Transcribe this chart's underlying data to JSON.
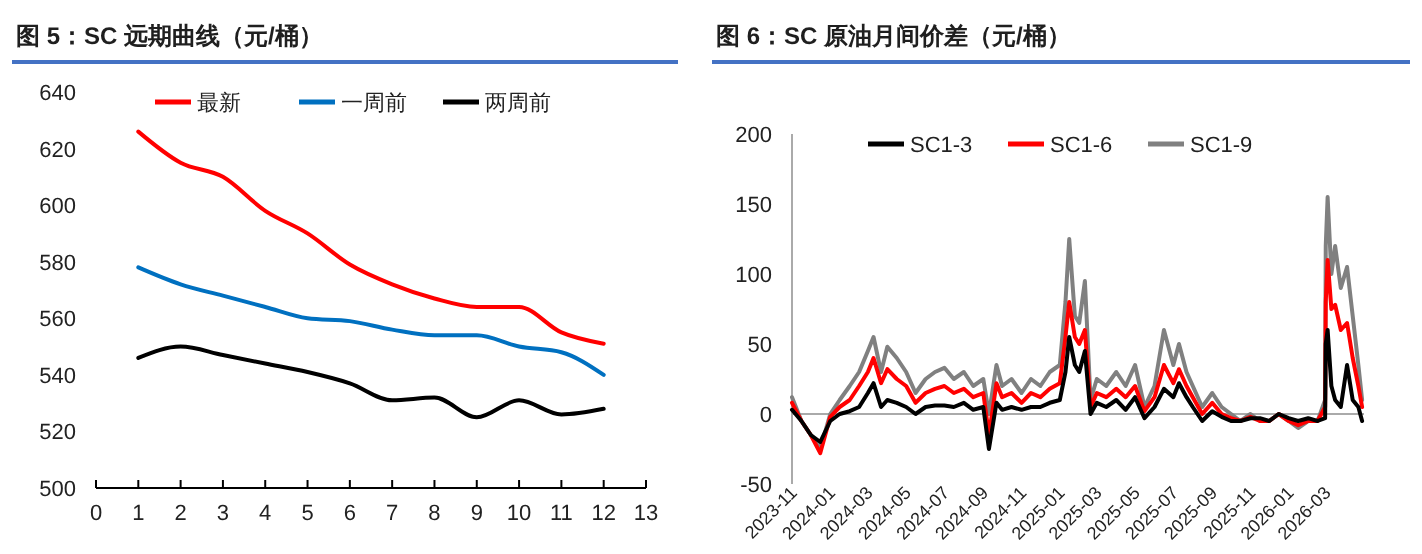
{
  "chart_data": [
    {
      "type": "line",
      "title": "图 5：SC 远期曲线（元/桶）",
      "x": [
        1,
        2,
        3,
        4,
        5,
        6,
        7,
        8,
        9,
        10,
        11,
        12
      ],
      "xlim": [
        0,
        13
      ],
      "xticks": [
        0,
        1,
        2,
        3,
        4,
        5,
        6,
        7,
        8,
        9,
        10,
        11,
        12,
        13
      ],
      "ylim": [
        500,
        640
      ],
      "yticks": [
        500,
        520,
        540,
        560,
        580,
        600,
        620,
        640
      ],
      "legend": "top",
      "series": [
        {
          "name": "最新",
          "color": "#ff0000",
          "values": [
            626,
            615,
            610,
            598,
            590,
            579,
            572,
            567,
            564,
            564,
            555,
            551
          ]
        },
        {
          "name": "一周前",
          "color": "#0070c0",
          "values": [
            578,
            572,
            568,
            564,
            560,
            559,
            556,
            554,
            554,
            550,
            548,
            540
          ]
        },
        {
          "name": "两周前",
          "color": "#000000",
          "values": [
            546,
            550,
            547,
            544,
            541,
            537,
            531,
            532,
            525,
            531,
            526,
            528
          ]
        }
      ]
    },
    {
      "type": "line",
      "title": "图 6：SC 原油月间价差（元/桶）",
      "x": [
        "2023-11-01",
        "2023-11-16",
        "2023-12-01",
        "2023-12-16",
        "2024-01-01",
        "2024-01-16",
        "2024-02-01",
        "2024-02-16",
        "2024-03-01",
        "2024-03-10",
        "2024-03-22",
        "2024-04-01",
        "2024-04-16",
        "2024-05-01",
        "2024-05-16",
        "2024-06-01",
        "2024-06-16",
        "2024-07-01",
        "2024-07-16",
        "2024-08-01",
        "2024-08-16",
        "2024-09-01",
        "2024-09-10",
        "2024-09-22",
        "2024-10-01",
        "2024-10-16",
        "2024-11-01",
        "2024-11-16",
        "2024-12-01",
        "2024-12-16",
        "2025-01-01",
        "2025-01-10",
        "2025-01-16",
        "2025-01-25",
        "2025-02-01",
        "2025-02-10",
        "2025-02-19",
        "2025-03-01",
        "2025-03-16",
        "2025-04-01",
        "2025-04-16",
        "2025-05-01",
        "2025-05-16",
        "2025-06-01",
        "2025-06-16",
        "2025-07-01",
        "2025-07-10",
        "2025-07-22",
        "2025-08-01",
        "2025-08-16",
        "2025-09-01",
        "2025-09-16",
        "2025-10-01",
        "2025-10-16",
        "2025-11-01",
        "2025-11-16",
        "2025-12-01",
        "2025-12-16",
        "2026-01-01",
        "2026-01-16",
        "2026-02-01",
        "2026-02-16",
        "2026-02-28",
        "2026-03-01",
        "2026-03-04",
        "2026-03-10",
        "2026-03-16",
        "2026-03-25",
        "2026-04-04",
        "2026-04-13",
        "2026-04-22",
        "2026-04-28"
      ],
      "xlim": [
        "2023-11-01",
        "2026-05-01"
      ],
      "xticks": [
        "2023-11",
        "2024-01",
        "2024-03",
        "2024-05",
        "2024-07",
        "2024-09",
        "2024-11",
        "2025-01",
        "2025-03",
        "2025-05",
        "2025-07",
        "2025-09",
        "2025-11",
        "2026-01",
        "2026-03"
      ],
      "ylim": [
        -50,
        200
      ],
      "yticks": [
        -50,
        0,
        50,
        100,
        150,
        200
      ],
      "legend": "top",
      "series": [
        {
          "name": "SC1-3",
          "color": "#000000",
          "values": [
            3,
            -5,
            -15,
            -20,
            -5,
            0,
            2,
            5,
            15,
            22,
            5,
            10,
            8,
            5,
            0,
            5,
            6,
            6,
            5,
            8,
            3,
            5,
            -25,
            8,
            3,
            5,
            3,
            5,
            5,
            8,
            10,
            30,
            55,
            35,
            30,
            45,
            0,
            8,
            5,
            10,
            3,
            12,
            -3,
            5,
            18,
            12,
            22,
            12,
            5,
            -5,
            2,
            -2,
            -5,
            -5,
            -3,
            -3,
            -5,
            0,
            -3,
            -5,
            -3,
            -5,
            -3,
            50,
            60,
            20,
            10,
            5,
            35,
            10,
            5,
            -5
          ]
        },
        {
          "name": "SC1-6",
          "color": "#ff0000",
          "values": [
            8,
            -5,
            -15,
            -28,
            -2,
            5,
            10,
            20,
            30,
            40,
            22,
            32,
            25,
            20,
            8,
            15,
            18,
            20,
            15,
            18,
            12,
            15,
            -15,
            22,
            12,
            15,
            8,
            15,
            12,
            18,
            22,
            55,
            80,
            55,
            50,
            60,
            5,
            15,
            12,
            18,
            12,
            20,
            2,
            12,
            35,
            22,
            32,
            20,
            12,
            0,
            8,
            0,
            -3,
            -5,
            -2,
            -5,
            -5,
            0,
            -5,
            -8,
            -5,
            -5,
            5,
            80,
            110,
            75,
            78,
            60,
            65,
            40,
            20,
            5
          ]
        },
        {
          "name": "SC1-9",
          "color": "#808080",
          "values": [
            12,
            -5,
            -15,
            -25,
            0,
            10,
            20,
            30,
            45,
            55,
            30,
            48,
            40,
            30,
            15,
            25,
            30,
            33,
            25,
            30,
            20,
            25,
            0,
            35,
            20,
            25,
            15,
            25,
            20,
            30,
            35,
            80,
            125,
            70,
            65,
            95,
            10,
            25,
            20,
            30,
            20,
            35,
            5,
            20,
            60,
            35,
            50,
            30,
            20,
            5,
            15,
            5,
            0,
            -5,
            0,
            -5,
            -5,
            0,
            -5,
            -10,
            -5,
            -5,
            10,
            120,
            155,
            100,
            120,
            90,
            105,
            70,
            35,
            10
          ]
        }
      ]
    }
  ]
}
